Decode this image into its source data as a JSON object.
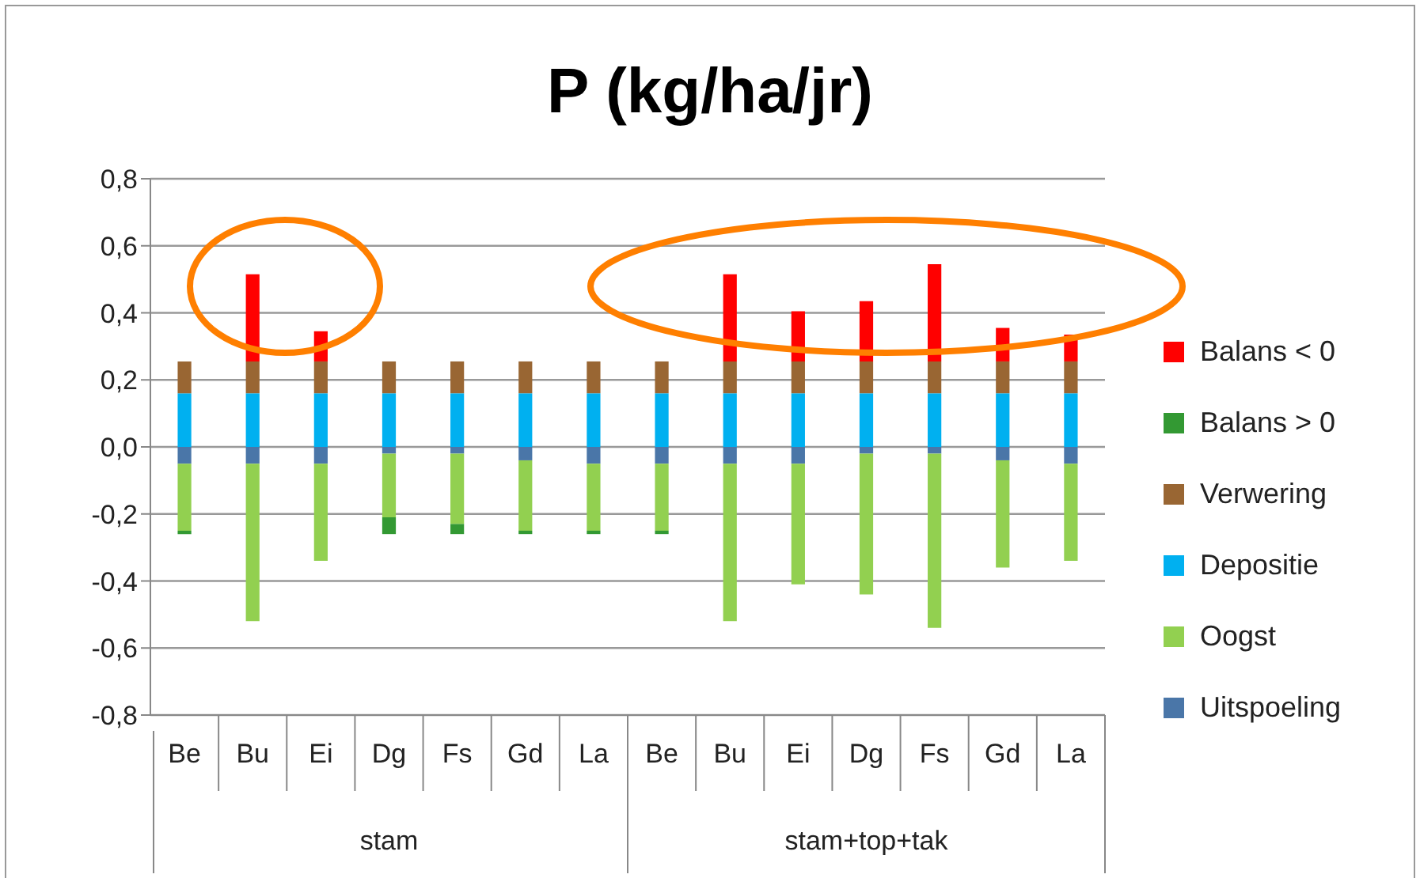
{
  "chart_data": {
    "type": "bar",
    "title": "P (kg/ha/jr)",
    "stacked": true,
    "grid": "y",
    "legend": "right",
    "categories": [
      "Be",
      "Bu",
      "Ei",
      "Dg",
      "Fs",
      "Gd",
      "La",
      "Be",
      "Bu",
      "Ei",
      "Dg",
      "Fs",
      "Gd",
      "La"
    ],
    "annotations": [
      "stam",
      "stam+top+tak"
    ],
    "ylim": [
      -0.8,
      0.8
    ],
    "yticks": [
      {
        "value": -0.8,
        "label": "-0,8"
      },
      {
        "value": -0.6,
        "label": "-0,6"
      },
      {
        "value": -0.4,
        "label": "-0,4"
      },
      {
        "value": -0.2,
        "label": "-0,2"
      },
      {
        "value": 0,
        "label": "0,0"
      },
      {
        "value": 0.2,
        "label": "0,2"
      },
      {
        "value": 0.4,
        "label": "0,4"
      },
      {
        "value": 0.6,
        "label": "0,6"
      },
      {
        "value": 0.8,
        "label": "0,8"
      }
    ],
    "series": [
      {
        "name": "Uitspoeling",
        "color": "#4a76a8",
        "values": [
          -0.05,
          -0.05,
          -0.05,
          -0.02,
          -0.02,
          -0.04,
          -0.05,
          -0.05,
          -0.05,
          -0.05,
          -0.02,
          -0.02,
          -0.04,
          -0.05
        ]
      },
      {
        "name": "Oogst",
        "color": "#92d050",
        "values": [
          -0.2,
          -0.47,
          -0.29,
          -0.19,
          -0.21,
          -0.21,
          -0.2,
          -0.2,
          -0.47,
          -0.36,
          -0.42,
          -0.52,
          -0.32,
          -0.29
        ]
      },
      {
        "name": "Depositie",
        "color": "#00b0f0",
        "values": [
          0.16,
          0.16,
          0.16,
          0.16,
          0.16,
          0.16,
          0.16,
          0.16,
          0.16,
          0.16,
          0.16,
          0.16,
          0.16,
          0.16
        ]
      },
      {
        "name": "Verwering",
        "color": "#996633",
        "values": [
          0.095,
          0.095,
          0.095,
          0.095,
          0.095,
          0.095,
          0.095,
          0.095,
          0.095,
          0.095,
          0.095,
          0.095,
          0.095,
          0.095
        ]
      },
      {
        "name": "Balans > 0",
        "color": "#339933",
        "values": [
          -0.01,
          null,
          null,
          -0.05,
          -0.03,
          -0.01,
          -0.01,
          -0.01,
          null,
          null,
          null,
          null,
          null,
          null
        ]
      },
      {
        "name": "Balans < 0",
        "color": "#ff0000",
        "values": [
          null,
          0.26,
          0.09,
          null,
          null,
          null,
          null,
          null,
          0.26,
          0.15,
          0.18,
          0.29,
          0.1,
          0.08
        ]
      }
    ]
  }
}
